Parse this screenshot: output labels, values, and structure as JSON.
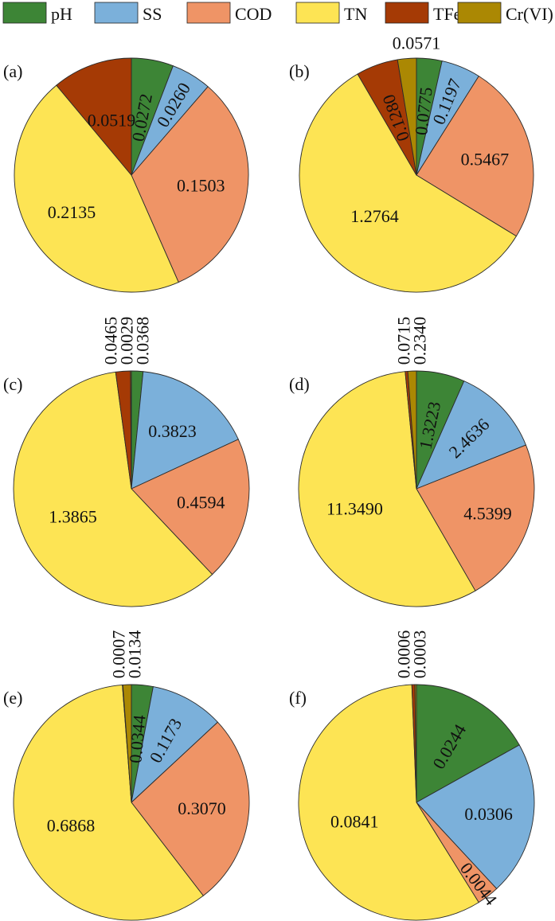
{
  "legend": [
    {
      "label": "pH",
      "color": "#3d8536"
    },
    {
      "label": "SS",
      "color": "#7bb0da"
    },
    {
      "label": "COD",
      "color": "#ef9466"
    },
    {
      "label": "TN",
      "color": "#fde454"
    },
    {
      "label": "TFe",
      "color": "#a53a05"
    },
    {
      "label": "Cr(VI)",
      "color": "#ab8803"
    }
  ],
  "chart_data": [
    {
      "type": "pie",
      "panel_label": "(a)",
      "categories": [
        "pH",
        "SS",
        "COD",
        "TN",
        "TFe",
        "Cr(VI)"
      ],
      "values": [
        0.0272,
        0.026,
        0.1503,
        0.2135,
        0.0519,
        0
      ],
      "labels": [
        "0.0272",
        "0.0260",
        "0.1503",
        "0.2135",
        "0.0519",
        ""
      ]
    },
    {
      "type": "pie",
      "panel_label": "(b)",
      "categories": [
        "pH",
        "SS",
        "COD",
        "TN",
        "TFe",
        "Cr(VI)"
      ],
      "values": [
        0.0775,
        0.1197,
        0.5467,
        1.2764,
        0.128,
        0.0571
      ],
      "labels": [
        "0.0775",
        "0.1197",
        "0.5467",
        "1.2764",
        "0.1280",
        "0.0571"
      ]
    },
    {
      "type": "pie",
      "panel_label": "(c)",
      "categories": [
        "pH",
        "SS",
        "COD",
        "TN",
        "TFe",
        "Cr(VI)"
      ],
      "values": [
        0.0368,
        0.3823,
        0.4594,
        1.3865,
        0.0465,
        0.0029
      ],
      "labels": [
        "0.0368",
        "0.3823",
        "0.4594",
        "1.3865",
        "0.0465",
        "0.0029"
      ]
    },
    {
      "type": "pie",
      "panel_label": "(d)",
      "categories": [
        "pH",
        "SS",
        "COD",
        "TN",
        "TFe",
        "Cr(VI)"
      ],
      "values": [
        1.3223,
        2.4636,
        4.5399,
        11.349,
        0.0715,
        0.234
      ],
      "labels": [
        "1.3223",
        "2.4636",
        "4.5399",
        "11.3490",
        "0.0715",
        "0.2340"
      ]
    },
    {
      "type": "pie",
      "panel_label": "(e)",
      "categories": [
        "pH",
        "SS",
        "COD",
        "TN",
        "TFe",
        "Cr(VI)"
      ],
      "values": [
        0.0344,
        0.1173,
        0.307,
        0.6868,
        0.0007,
        0.0134
      ],
      "labels": [
        "0.0344",
        "0.1173",
        "0.3070",
        "0.6868",
        "0.0007",
        "0.0134"
      ]
    },
    {
      "type": "pie",
      "panel_label": "(f)",
      "categories": [
        "pH",
        "SS",
        "COD",
        "TN",
        "TFe",
        "Cr(VI)"
      ],
      "values": [
        0.0244,
        0.0306,
        0.0044,
        0.0841,
        0.0006,
        0.0003
      ],
      "labels": [
        "0.0244",
        "0.0306",
        "0.0044",
        "0.0841",
        "0.0006",
        "0.0003"
      ]
    }
  ]
}
